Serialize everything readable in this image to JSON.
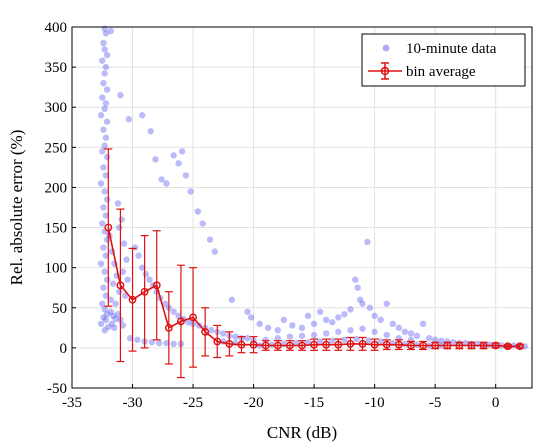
{
  "chart_data": {
    "type": "scatter",
    "title": "",
    "xlabel": "CNR (dB)",
    "ylabel": "Rel. absolute error (%)",
    "xlim": [
      -35,
      3
    ],
    "ylim": [
      -50,
      400
    ],
    "xticks": [
      -35,
      -30,
      -25,
      -20,
      -15,
      -10,
      -5,
      0
    ],
    "yticks": [
      -50,
      0,
      50,
      100,
      150,
      200,
      250,
      300,
      350,
      400
    ],
    "grid": true,
    "legend_position": "top-right",
    "series": [
      {
        "name": "10-minute data",
        "kind": "scatter",
        "color": "#4b4bf0",
        "points": [
          [
            -32.3,
            398
          ],
          [
            -32.2,
            392
          ],
          [
            -31.8,
            395
          ],
          [
            -32.4,
            380
          ],
          [
            -32.3,
            372
          ],
          [
            -32.1,
            365
          ],
          [
            -32.5,
            358
          ],
          [
            -32.2,
            350
          ],
          [
            -32.3,
            342
          ],
          [
            -32.4,
            330
          ],
          [
            -32.1,
            322
          ],
          [
            -32.5,
            312
          ],
          [
            -32.2,
            305
          ],
          [
            -32.3,
            298
          ],
          [
            -32.6,
            290
          ],
          [
            -32.1,
            282
          ],
          [
            -32.4,
            272
          ],
          [
            -32.2,
            262
          ],
          [
            -32.3,
            252
          ],
          [
            -32.5,
            245
          ],
          [
            -32.1,
            238
          ],
          [
            -32.4,
            225
          ],
          [
            -32.2,
            215
          ],
          [
            -32.6,
            205
          ],
          [
            -32.3,
            195
          ],
          [
            -32.1,
            185
          ],
          [
            -32.4,
            175
          ],
          [
            -32.2,
            165
          ],
          [
            -32.5,
            155
          ],
          [
            -32.3,
            145
          ],
          [
            -32.1,
            135
          ],
          [
            -32.4,
            125
          ],
          [
            -32.2,
            115
          ],
          [
            -32.6,
            105
          ],
          [
            -32.3,
            95
          ],
          [
            -32.1,
            85
          ],
          [
            -32.4,
            75
          ],
          [
            -32.2,
            65
          ],
          [
            -32.5,
            55
          ],
          [
            -32.3,
            48
          ],
          [
            -32.1,
            42
          ],
          [
            -32.4,
            38
          ],
          [
            -32.2,
            35
          ],
          [
            -32.6,
            30
          ],
          [
            -32.0,
            26
          ],
          [
            -32.3,
            22
          ],
          [
            -31.8,
            45
          ],
          [
            -31.6,
            40
          ],
          [
            -31.4,
            36
          ],
          [
            -31.7,
            30
          ],
          [
            -31.2,
            42
          ],
          [
            -31.0,
            35
          ],
          [
            -30.8,
            28
          ],
          [
            -31.5,
            25
          ],
          [
            -31.9,
            140
          ],
          [
            -31.7,
            120
          ],
          [
            -31.5,
            105
          ],
          [
            -31.3,
            90
          ],
          [
            -31.6,
            80
          ],
          [
            -31.1,
            70
          ],
          [
            -31.8,
            60
          ],
          [
            -31.4,
            55
          ],
          [
            -31.2,
            180
          ],
          [
            -30.9,
            160
          ],
          [
            -31.1,
            150
          ],
          [
            -30.7,
            130
          ],
          [
            -30.5,
            110
          ],
          [
            -30.8,
            95
          ],
          [
            -30.4,
            85
          ],
          [
            -30.6,
            65
          ],
          [
            -31.0,
            315
          ],
          [
            -30.3,
            285
          ],
          [
            -29.2,
            290
          ],
          [
            -28.5,
            270
          ],
          [
            -28.1,
            235
          ],
          [
            -27.6,
            210
          ],
          [
            -27.2,
            205
          ],
          [
            -26.6,
            240
          ],
          [
            -26.2,
            230
          ],
          [
            -25.6,
            215
          ],
          [
            -25.9,
            245
          ],
          [
            -25.2,
            195
          ],
          [
            -24.6,
            170
          ],
          [
            -24.2,
            155
          ],
          [
            -23.6,
            135
          ],
          [
            -23.2,
            120
          ],
          [
            -29.8,
            125
          ],
          [
            -29.5,
            115
          ],
          [
            -29.2,
            100
          ],
          [
            -28.9,
            92
          ],
          [
            -28.6,
            85
          ],
          [
            -28.3,
            78
          ],
          [
            -28.0,
            70
          ],
          [
            -27.7,
            62
          ],
          [
            -27.3,
            55
          ],
          [
            -27.0,
            50
          ],
          [
            -26.6,
            45
          ],
          [
            -26.2,
            40
          ],
          [
            -25.8,
            36
          ],
          [
            -25.4,
            32
          ],
          [
            -25.0,
            30
          ],
          [
            -24.5,
            28
          ],
          [
            -24.0,
            25
          ],
          [
            -23.5,
            22
          ],
          [
            -23.0,
            20
          ],
          [
            -22.5,
            18
          ],
          [
            -22.0,
            15
          ],
          [
            -21.5,
            14
          ],
          [
            -21.0,
            12
          ],
          [
            -20.5,
            12
          ],
          [
            -30.2,
            12
          ],
          [
            -29.6,
            10
          ],
          [
            -29.0,
            8
          ],
          [
            -28.4,
            7
          ],
          [
            -27.8,
            6
          ],
          [
            -27.2,
            6
          ],
          [
            -26.6,
            5
          ],
          [
            -26.0,
            5
          ],
          [
            -21.8,
            60
          ],
          [
            -20.5,
            45
          ],
          [
            -20.2,
            38
          ],
          [
            -19.5,
            30
          ],
          [
            -18.8,
            25
          ],
          [
            -18.0,
            22
          ],
          [
            -17.5,
            35
          ],
          [
            -16.8,
            28
          ],
          [
            -16.0,
            25
          ],
          [
            -15.5,
            40
          ],
          [
            -15.0,
            30
          ],
          [
            -14.5,
            45
          ],
          [
            -14.0,
            35
          ],
          [
            -13.5,
            32
          ],
          [
            -13.0,
            38
          ],
          [
            -12.5,
            42
          ],
          [
            -12.0,
            48
          ],
          [
            -11.6,
            85
          ],
          [
            -11.4,
            75
          ],
          [
            -11.2,
            60
          ],
          [
            -11.0,
            55
          ],
          [
            -10.6,
            132
          ],
          [
            -10.4,
            50
          ],
          [
            -10.0,
            40
          ],
          [
            -9.5,
            35
          ],
          [
            -9.0,
            55
          ],
          [
            -8.5,
            30
          ],
          [
            -8.0,
            25
          ],
          [
            -7.5,
            20
          ],
          [
            -7.0,
            18
          ],
          [
            -6.5,
            15
          ],
          [
            -6.0,
            30
          ],
          [
            -5.5,
            12
          ],
          [
            -5.0,
            10
          ],
          [
            -4.5,
            9
          ],
          [
            -4.0,
            8
          ],
          [
            -3.5,
            7
          ],
          [
            -3.0,
            6
          ],
          [
            -2.5,
            6
          ],
          [
            -2.0,
            5
          ],
          [
            -1.5,
            5
          ],
          [
            -1.0,
            4
          ],
          [
            -0.5,
            4
          ],
          [
            0.0,
            3
          ],
          [
            0.5,
            3
          ],
          [
            1.0,
            3
          ],
          [
            1.5,
            3
          ],
          [
            2.0,
            3
          ],
          [
            2.4,
            2
          ],
          [
            -22.5,
            8
          ],
          [
            -21.5,
            6
          ],
          [
            -20.0,
            9
          ],
          [
            -19.0,
            10
          ],
          [
            -18.0,
            12
          ],
          [
            -17.0,
            14
          ],
          [
            -16.0,
            15
          ],
          [
            -15.0,
            16
          ],
          [
            -14.0,
            18
          ],
          [
            -13.0,
            20
          ],
          [
            -12.0,
            22
          ],
          [
            -11.0,
            24
          ],
          [
            -10.0,
            20
          ],
          [
            -9.0,
            16
          ],
          [
            -8.0,
            12
          ],
          [
            -7.0,
            10
          ],
          [
            -19.5,
            3
          ],
          [
            -18.5,
            4
          ],
          [
            -17.5,
            5
          ],
          [
            -16.5,
            6
          ],
          [
            -15.5,
            7
          ],
          [
            -14.5,
            8
          ],
          [
            -13.5,
            9
          ],
          [
            -12.5,
            10
          ],
          [
            -11.5,
            11
          ],
          [
            -10.5,
            9
          ],
          [
            -9.5,
            8
          ],
          [
            -8.5,
            6
          ],
          [
            -7.5,
            5
          ],
          [
            -6.5,
            4
          ],
          [
            -5.5,
            3
          ],
          [
            -4.5,
            3
          ]
        ]
      },
      {
        "name": "bin average",
        "kind": "errorbar",
        "color": "#dd1111",
        "points": [
          {
            "x": -32,
            "y": 150,
            "lo": 52,
            "hi": 248
          },
          {
            "x": -31,
            "y": 78,
            "lo": -17,
            "hi": 173
          },
          {
            "x": -30,
            "y": 60,
            "lo": -4,
            "hi": 124
          },
          {
            "x": -29,
            "y": 70,
            "lo": 0,
            "hi": 140
          },
          {
            "x": -28,
            "y": 78,
            "lo": 10,
            "hi": 146
          },
          {
            "x": -27,
            "y": 25,
            "lo": -20,
            "hi": 70
          },
          {
            "x": -26,
            "y": 33,
            "lo": -37,
            "hi": 103
          },
          {
            "x": -25,
            "y": 38,
            "lo": -24,
            "hi": 100
          },
          {
            "x": -24,
            "y": 20,
            "lo": -10,
            "hi": 50
          },
          {
            "x": -23,
            "y": 8,
            "lo": -12,
            "hi": 28
          },
          {
            "x": -22,
            "y": 5,
            "lo": -10,
            "hi": 20
          },
          {
            "x": -21,
            "y": 4,
            "lo": -6,
            "hi": 14
          },
          {
            "x": -20,
            "y": 4,
            "lo": -6,
            "hi": 14
          },
          {
            "x": -19,
            "y": 3,
            "lo": -3,
            "hi": 9
          },
          {
            "x": -18,
            "y": 3,
            "lo": -3,
            "hi": 9
          },
          {
            "x": -17,
            "y": 3,
            "lo": -3,
            "hi": 9
          },
          {
            "x": -16,
            "y": 3,
            "lo": -3,
            "hi": 9
          },
          {
            "x": -15,
            "y": 4,
            "lo": -3,
            "hi": 11
          },
          {
            "x": -14,
            "y": 4,
            "lo": -3,
            "hi": 11
          },
          {
            "x": -13,
            "y": 4,
            "lo": -3,
            "hi": 11
          },
          {
            "x": -12,
            "y": 5,
            "lo": -3,
            "hi": 13
          },
          {
            "x": -11,
            "y": 5,
            "lo": -3,
            "hi": 13
          },
          {
            "x": -10,
            "y": 4,
            "lo": -3,
            "hi": 11
          },
          {
            "x": -9,
            "y": 4,
            "lo": -2,
            "hi": 10
          },
          {
            "x": -8,
            "y": 4,
            "lo": -2,
            "hi": 10
          },
          {
            "x": -7,
            "y": 3,
            "lo": -2,
            "hi": 8
          },
          {
            "x": -6,
            "y": 3,
            "lo": -2,
            "hi": 8
          },
          {
            "x": -5,
            "y": 3,
            "lo": -1,
            "hi": 7
          },
          {
            "x": -4,
            "y": 3,
            "lo": -1,
            "hi": 7
          },
          {
            "x": -3,
            "y": 3,
            "lo": -1,
            "hi": 7
          },
          {
            "x": -2,
            "y": 3,
            "lo": -1,
            "hi": 7
          },
          {
            "x": -1,
            "y": 3,
            "lo": -1,
            "hi": 7
          },
          {
            "x": 0,
            "y": 3,
            "lo": 0,
            "hi": 6
          },
          {
            "x": 1,
            "y": 2,
            "lo": 0,
            "hi": 4
          },
          {
            "x": 2,
            "y": 2,
            "lo": 0,
            "hi": 4
          }
        ]
      }
    ]
  }
}
